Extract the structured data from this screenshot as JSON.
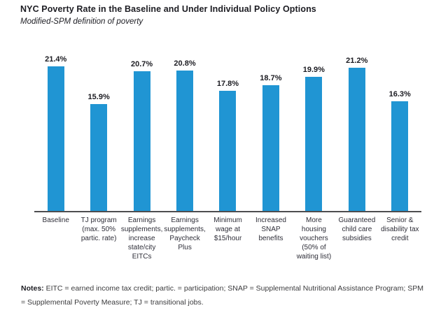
{
  "header": {
    "title": "NYC Poverty Rate in the Baseline and Under Individual Policy Options",
    "subtitle": "Modified-SPM definition of poverty"
  },
  "chart_data": {
    "type": "bar",
    "categories": [
      "Baseline",
      "TJ program (max. 50% partic. rate)",
      "Earnings supplements, increase state/city EITCs",
      "Earnings supplements, Paycheck Plus",
      "Minimum wage at $15/hour",
      "Increased SNAP benefits",
      "More housing vouchers (50% of waiting list)",
      "Guaranteed child care subsidies",
      "Senior & disability tax credit"
    ],
    "values": [
      21.4,
      15.9,
      20.7,
      20.8,
      17.8,
      18.7,
      19.9,
      21.2,
      16.3
    ],
    "value_labels": [
      "21.4%",
      "15.9%",
      "20.7%",
      "20.8%",
      "17.8%",
      "18.7%",
      "19.9%",
      "21.2%",
      "16.3%"
    ],
    "title": "NYC Poverty Rate in the Baseline and Under Individual Policy Options",
    "subtitle": "Modified-SPM definition of poverty",
    "xlabel": "",
    "ylabel": "",
    "ylim": [
      0,
      23.5
    ],
    "grid": false,
    "legend": false,
    "bar_color": "#2095d3",
    "axis_line_color": "#4d4d4f"
  },
  "notes": {
    "label": "Notes:",
    "text": "EITC = earned income tax credit; partic. = participation; SNAP = Supplemental Nutritional Assistance Program; SPM = Supplemental Poverty Measure; TJ = transitional jobs."
  }
}
